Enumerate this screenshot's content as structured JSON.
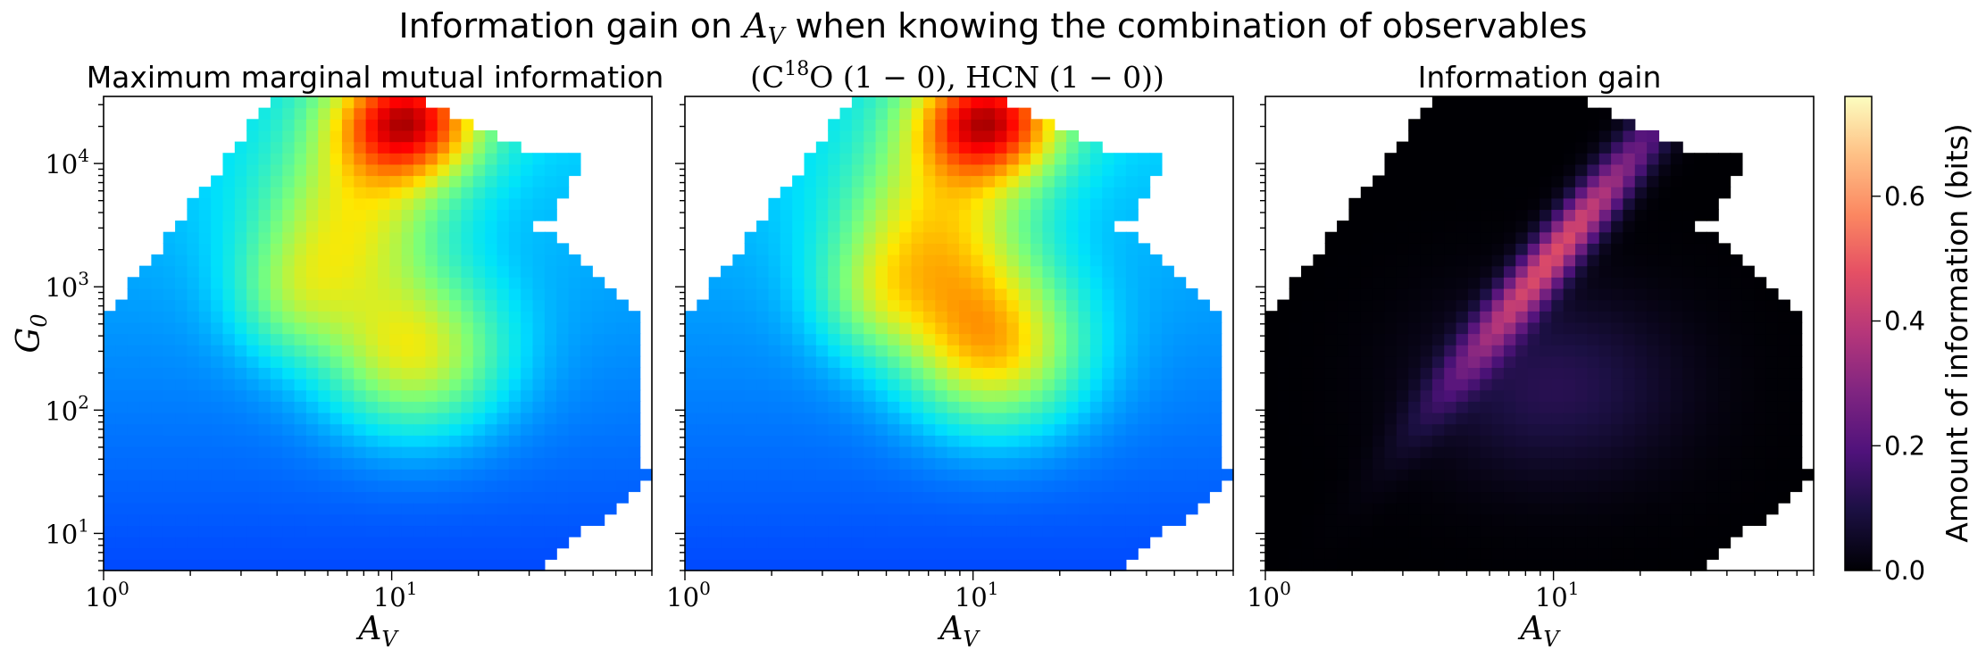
{
  "figure": {
    "title": "Information gain on A_V when knowing the combination of observables",
    "colorbar": {
      "label": "Amount of information (bits)",
      "ticks": [
        "0.0",
        "0.2",
        "0.4",
        "0.6"
      ],
      "range": [
        0.0,
        0.76
      ],
      "colormap": "magma"
    }
  },
  "chart_data": [
    {
      "type": "heatmap",
      "title": "Maximum marginal mutual information",
      "xlabel": "A_V",
      "ylabel": "G_0",
      "xscale": "log",
      "yscale": "log",
      "xlim": [
        1,
        80
      ],
      "ylim": [
        5,
        35000
      ],
      "xticks": [
        "10^0",
        "10^1"
      ],
      "yticks": [
        "10^1",
        "10^2",
        "10^3",
        "10^4"
      ],
      "colormap": "jet",
      "peak_value": 0.76,
      "peak_location": {
        "A_V": 11,
        "G_0": 30000
      },
      "description_of_values": "low (~0.1) in lower region, medium (~0.35) around A_V 6-20 at G_0 200-3000, high (~0.7) at top A_V 8-20"
    },
    {
      "type": "heatmap",
      "title": "(C18O (1 − 0), HCN (1 − 0))",
      "xlabel": "A_V",
      "xscale": "log",
      "yscale": "log",
      "xlim": [
        1,
        80
      ],
      "ylim": [
        5,
        35000
      ],
      "xticks": [
        "10^0",
        "10^1"
      ],
      "colormap": "jet",
      "peak_value": 0.76,
      "peak_location": {
        "A_V": 11,
        "G_0": 30000
      }
    },
    {
      "type": "heatmap",
      "title": "Information gain",
      "xlabel": "A_V",
      "xscale": "log",
      "yscale": "log",
      "xlim": [
        1,
        80
      ],
      "ylim": [
        5,
        35000
      ],
      "xticks": [
        "10^0",
        "10^1"
      ],
      "colormap": "magma",
      "peak_value": 0.5,
      "peak_location": {
        "A_V": 16,
        "G_0": 2500
      },
      "description_of_values": "mostly ~0; diagonal ridge from (A_V 6, G_0 300) to (A_V 20, G_0 15000) reaching ~0.5"
    }
  ]
}
